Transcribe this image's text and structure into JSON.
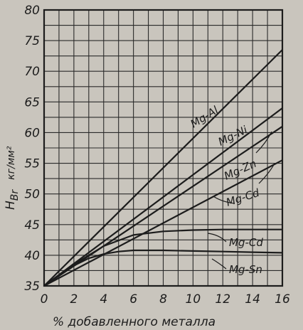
{
  "chart_data": {
    "type": "line",
    "xlabel": "% добавленного металла",
    "ylabel_main": "H",
    "ylabel_sub": "Br",
    "ylabel_unit": "кг/мм²",
    "xlim": [
      0,
      16
    ],
    "ylim": [
      35,
      80
    ],
    "xticks": [
      0,
      2,
      4,
      6,
      8,
      10,
      12,
      14,
      16
    ],
    "yticks": [
      35,
      40,
      45,
      50,
      55,
      60,
      65,
      70,
      75,
      80
    ],
    "grid": true,
    "colors": {
      "background": "#c9c5bd",
      "ink": "#1c1c1c",
      "grid": "#2a2a2a"
    },
    "series": [
      {
        "name": "Mg-Al",
        "x": [
          0,
          16
        ],
        "y": [
          35,
          73.5
        ]
      },
      {
        "name": "Mg-Ni",
        "x": [
          0,
          16
        ],
        "y": [
          35,
          64
        ]
      },
      {
        "name": "Mg-Zn",
        "x": [
          0,
          16
        ],
        "y": [
          35,
          61
        ]
      },
      {
        "name": "Mg-Cd",
        "x": [
          0,
          16
        ],
        "y": [
          35,
          55.5
        ]
      },
      {
        "name": "Mg-Cd",
        "x": [
          0,
          2,
          4,
          6,
          8,
          10,
          12,
          14,
          16
        ],
        "y": [
          35,
          38.5,
          41.5,
          43.3,
          43.9,
          44.1,
          44.2,
          44.2,
          44.2
        ]
      },
      {
        "name": "Mg-Sn",
        "x": [
          0,
          2,
          3,
          4,
          5,
          6,
          8,
          10,
          12,
          14,
          16
        ],
        "y": [
          35,
          38.3,
          39.5,
          40.2,
          40.6,
          40.8,
          40.8,
          40.7,
          40.6,
          40.5,
          40.4
        ]
      }
    ],
    "series_labels": [
      "Mg-Al",
      "Mg-Ni",
      "Mg-Zn",
      "Mg-Cd",
      "Mg-Cd",
      "Mg-Sn"
    ]
  }
}
